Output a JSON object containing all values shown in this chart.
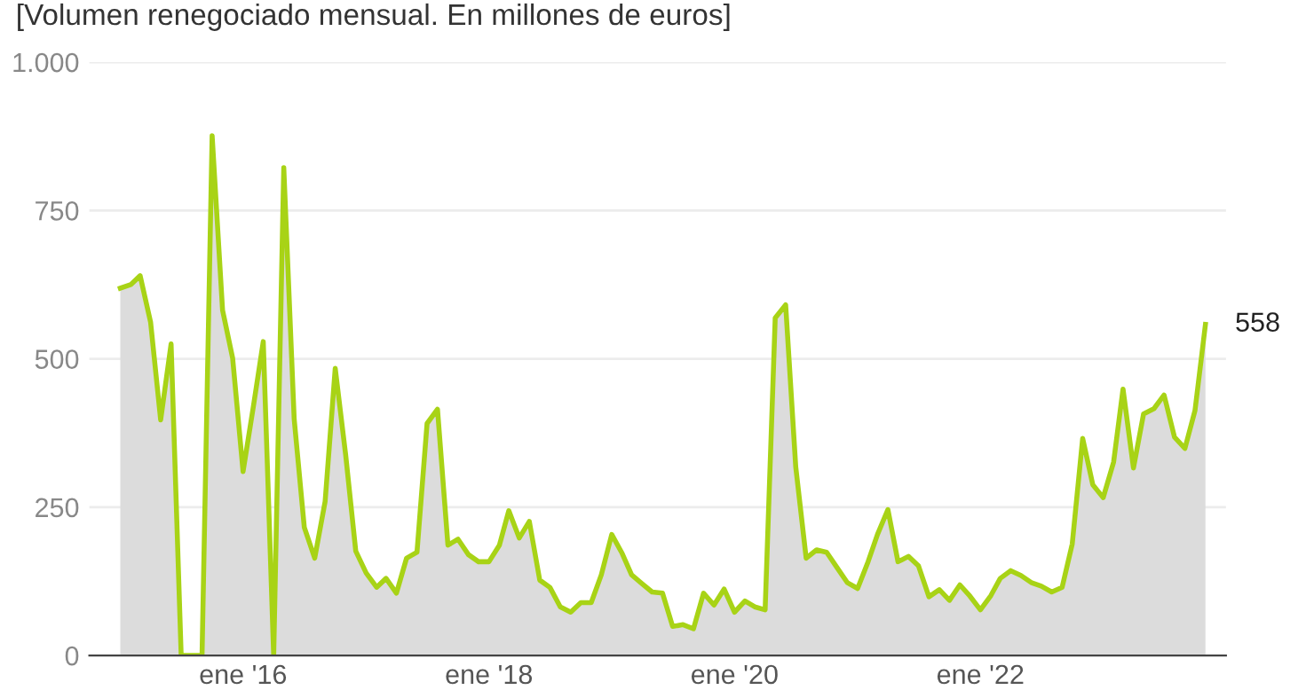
{
  "chart_data": {
    "type": "area",
    "title": "[Volumen renegociado mensual. En millones de euros]",
    "x": [
      "2015-01",
      "2015-02",
      "2015-03",
      "2015-04",
      "2015-05",
      "2015-06",
      "2015-07",
      "2015-08",
      "2015-09",
      "2015-10",
      "2015-11",
      "2015-12",
      "2016-01",
      "2016-02",
      "2016-03",
      "2016-04",
      "2016-05",
      "2016-06",
      "2016-07",
      "2016-08",
      "2016-09",
      "2016-10",
      "2016-11",
      "2016-12",
      "2017-01",
      "2017-02",
      "2017-03",
      "2017-04",
      "2017-05",
      "2017-06",
      "2017-07",
      "2017-08",
      "2017-09",
      "2017-10",
      "2017-11",
      "2017-12",
      "2018-01",
      "2018-02",
      "2018-03",
      "2018-04",
      "2018-05",
      "2018-06",
      "2018-07",
      "2018-08",
      "2018-09",
      "2018-10",
      "2018-11",
      "2018-12",
      "2019-01",
      "2019-02",
      "2019-03",
      "2019-04",
      "2019-05",
      "2019-06",
      "2019-07",
      "2019-08",
      "2019-09",
      "2019-10",
      "2019-11",
      "2019-12",
      "2020-01",
      "2020-02",
      "2020-03",
      "2020-04",
      "2020-05",
      "2020-06",
      "2020-07",
      "2020-08",
      "2020-09",
      "2020-10",
      "2020-11",
      "2020-12",
      "2021-01",
      "2021-02",
      "2021-03",
      "2021-04",
      "2021-05",
      "2021-06",
      "2021-07",
      "2021-08",
      "2021-09",
      "2021-10",
      "2021-11",
      "2021-12",
      "2022-01",
      "2022-02",
      "2022-03",
      "2022-04",
      "2022-05",
      "2022-06",
      "2022-07",
      "2022-08",
      "2022-09",
      "2022-10",
      "2022-11",
      "2022-12",
      "2023-01",
      "2023-02",
      "2023-03",
      "2023-04",
      "2023-05",
      "2023-06",
      "2023-07",
      "2023-08",
      "2023-09",
      "2023-10",
      "2023-11"
    ],
    "series": [
      {
        "color": "#a8d316",
        "values": [
          619,
          625,
          640,
          562,
          397,
          525,
          0,
          0,
          0,
          876,
          582,
          501,
          310,
          421,
          529,
          0,
          822,
          398,
          216,
          164,
          260,
          484,
          338,
          176,
          139,
          115,
          130,
          105,
          164,
          174,
          391,
          415,
          186,
          196,
          170,
          158,
          158,
          186,
          244,
          198,
          226,
          127,
          115,
          82,
          73,
          89,
          89,
          136,
          204,
          172,
          136,
          121,
          107,
          105,
          49,
          52,
          45,
          105,
          85,
          112,
          73,
          92,
          82,
          77,
          569,
          591,
          318,
          164,
          178,
          174,
          148,
          123,
          113,
          158,
          204,
          246,
          158,
          167,
          151,
          99,
          111,
          93,
          119,
          100,
          77,
          101,
          130,
          143,
          135,
          123,
          117,
          107,
          115,
          188,
          366,
          288,
          266,
          326,
          449,
          316,
          407,
          416,
          439,
          368,
          349,
          413,
          558
        ]
      }
    ],
    "xlim": [
      "2014-10",
      "2024-01"
    ],
    "xticks": [
      {
        "value": "2016-01",
        "label": "ene '16"
      },
      {
        "value": "2018-01",
        "label": "ene '18"
      },
      {
        "value": "2020-01",
        "label": "ene '20"
      },
      {
        "value": "2022-01",
        "label": "ene '22"
      }
    ],
    "ylim": [
      0,
      1000
    ],
    "yticks": [
      0,
      250,
      500,
      750,
      {
        "value": 1000,
        "label": "1.000"
      }
    ],
    "grid": "y",
    "annotations": [
      {
        "text": "558",
        "x": "2023-11",
        "y": 558
      }
    ]
  }
}
